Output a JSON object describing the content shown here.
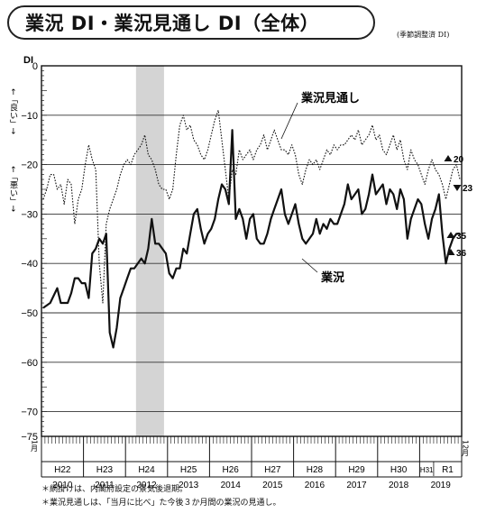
{
  "title": "業況 DI・業況見通し DI（全体）",
  "note_adjusted": "(季節調整済 DI)",
  "footnotes": [
    "＊網掛けは、内閣府設定の景気後退期。",
    "＊業況見通しは、「当月に比べ」た今後３か月間の業況の見通し。"
  ],
  "chart_data": {
    "type": "line",
    "ylabel": "DI",
    "y_up_label": "←「良い」→",
    "y_down_label": "←「悪い」→",
    "ylim": [
      -75,
      0
    ],
    "yticks": [
      0,
      -10,
      -20,
      -30,
      -40,
      -50,
      -60,
      -70,
      -75
    ],
    "ytick_labels": [
      "0",
      "−10",
      "−20",
      "−30",
      "−40",
      "−50",
      "−60",
      "−70",
      "−75"
    ],
    "grid": true,
    "x_start": "2010-01",
    "x_end": "2019-12",
    "x_start_label": "1月",
    "x_end_label": "12月",
    "era_labels": [
      "H22",
      "H23",
      "H24",
      "H25",
      "H26",
      "H27",
      "H28",
      "H29",
      "H30",
      "H31",
      "R1"
    ],
    "year_labels": [
      "2010",
      "2011",
      "2012",
      "2013",
      "2014",
      "2015",
      "2016",
      "2017",
      "2018",
      "2019"
    ],
    "recession_shading": {
      "start": "2012-04",
      "end": "2012-11"
    },
    "series": [
      {
        "name": "業況",
        "style": "solid",
        "color": "#111111",
        "points": [
          [
            "2010-01",
            -49
          ],
          [
            "2010-03",
            -48
          ],
          [
            "2010-05",
            -45
          ],
          [
            "2010-06",
            -48
          ],
          [
            "2010-08",
            -48
          ],
          [
            "2010-09",
            -46
          ],
          [
            "2010-10",
            -43
          ],
          [
            "2010-11",
            -43
          ],
          [
            "2010-12",
            -44
          ],
          [
            "2011-01",
            -44
          ],
          [
            "2011-02",
            -47
          ],
          [
            "2011-03",
            -38
          ],
          [
            "2011-04",
            -37
          ],
          [
            "2011-05",
            -35
          ],
          [
            "2011-06",
            -36
          ],
          [
            "2011-07",
            -34
          ],
          [
            "2011-08",
            -54
          ],
          [
            "2011-09",
            -57
          ],
          [
            "2011-10",
            -53
          ],
          [
            "2011-11",
            -47
          ],
          [
            "2011-12",
            -45
          ],
          [
            "2012-01",
            -43
          ],
          [
            "2012-02",
            -41
          ],
          [
            "2012-03",
            -41
          ],
          [
            "2012-04",
            -40
          ],
          [
            "2012-05",
            -39
          ],
          [
            "2012-06",
            -40
          ],
          [
            "2012-07",
            -37
          ],
          [
            "2012-08",
            -31
          ],
          [
            "2012-09",
            -36
          ],
          [
            "2012-10",
            -36
          ],
          [
            "2012-11",
            -37
          ],
          [
            "2012-12",
            -38
          ],
          [
            "2013-01",
            -42
          ],
          [
            "2013-02",
            -43
          ],
          [
            "2013-03",
            -41
          ],
          [
            "2013-04",
            -41
          ],
          [
            "2013-05",
            -37
          ],
          [
            "2013-06",
            -38
          ],
          [
            "2013-07",
            -34
          ],
          [
            "2013-08",
            -30
          ],
          [
            "2013-09",
            -29
          ],
          [
            "2013-10",
            -33
          ],
          [
            "2013-11",
            -36
          ],
          [
            "2013-12",
            -34
          ],
          [
            "2014-01",
            -33
          ],
          [
            "2014-02",
            -31
          ],
          [
            "2014-03",
            -27
          ],
          [
            "2014-04",
            -24
          ],
          [
            "2014-05",
            -25
          ],
          [
            "2014-06",
            -28
          ],
          [
            "2014-07",
            -13
          ],
          [
            "2014-08",
            -31
          ],
          [
            "2014-09",
            -29
          ],
          [
            "2014-10",
            -31
          ],
          [
            "2014-11",
            -35
          ],
          [
            "2014-12",
            -31
          ],
          [
            "2015-01",
            -30
          ],
          [
            "2015-02",
            -35
          ],
          [
            "2015-03",
            -36
          ],
          [
            "2015-04",
            -36
          ],
          [
            "2015-05",
            -34
          ],
          [
            "2015-06",
            -31
          ],
          [
            "2015-07",
            -29
          ],
          [
            "2015-08",
            -27
          ],
          [
            "2015-09",
            -25
          ],
          [
            "2015-10",
            -30
          ],
          [
            "2015-11",
            -32
          ],
          [
            "2015-12",
            -30
          ],
          [
            "2016-01",
            -28
          ],
          [
            "2016-02",
            -32
          ],
          [
            "2016-03",
            -35
          ],
          [
            "2016-04",
            -36
          ],
          [
            "2016-05",
            -35
          ],
          [
            "2016-06",
            -34
          ],
          [
            "2016-07",
            -31
          ],
          [
            "2016-08",
            -34
          ],
          [
            "2016-09",
            -32
          ],
          [
            "2016-10",
            -33
          ],
          [
            "2016-11",
            -31
          ],
          [
            "2016-12",
            -32
          ],
          [
            "2017-01",
            -32
          ],
          [
            "2017-02",
            -30
          ],
          [
            "2017-03",
            -28
          ],
          [
            "2017-04",
            -24
          ],
          [
            "2017-05",
            -27
          ],
          [
            "2017-06",
            -26
          ],
          [
            "2017-07",
            -25
          ],
          [
            "2017-08",
            -30
          ],
          [
            "2017-09",
            -29
          ],
          [
            "2017-10",
            -26
          ],
          [
            "2017-11",
            -22
          ],
          [
            "2017-12",
            -26
          ],
          [
            "2018-01",
            -25
          ],
          [
            "2018-02",
            -24
          ],
          [
            "2018-03",
            -28
          ],
          [
            "2018-04",
            -25
          ],
          [
            "2018-05",
            -26
          ],
          [
            "2018-06",
            -29
          ],
          [
            "2018-07",
            -25
          ],
          [
            "2018-08",
            -27
          ],
          [
            "2018-09",
            -35
          ],
          [
            "2018-10",
            -31
          ],
          [
            "2018-11",
            -29
          ],
          [
            "2018-12",
            -27
          ],
          [
            "2019-01",
            -28
          ],
          [
            "2019-02",
            -32
          ],
          [
            "2019-03",
            -35
          ],
          [
            "2019-04",
            -31
          ],
          [
            "2019-05",
            -29
          ],
          [
            "2019-06",
            -26
          ],
          [
            "2019-07",
            -34
          ],
          [
            "2019-08",
            -40
          ],
          [
            "2019-09",
            -37
          ],
          [
            "2019-10",
            -35
          ],
          [
            "2019-11",
            -34
          ],
          [
            "2019-12",
            -34
          ]
        ]
      },
      {
        "name": "業況見通し",
        "style": "dotted",
        "color": "#111111",
        "points": [
          [
            "2010-01",
            -27
          ],
          [
            "2010-02",
            -25
          ],
          [
            "2010-03",
            -22
          ],
          [
            "2010-04",
            -22
          ],
          [
            "2010-05",
            -25
          ],
          [
            "2010-06",
            -24
          ],
          [
            "2010-07",
            -28
          ],
          [
            "2010-08",
            -23
          ],
          [
            "2010-09",
            -24
          ],
          [
            "2010-10",
            -32
          ],
          [
            "2010-11",
            -27
          ],
          [
            "2010-12",
            -25
          ],
          [
            "2011-01",
            -20
          ],
          [
            "2011-02",
            -16
          ],
          [
            "2011-03",
            -19
          ],
          [
            "2011-04",
            -21
          ],
          [
            "2011-05",
            -40
          ],
          [
            "2011-06",
            -48
          ],
          [
            "2011-07",
            -32
          ],
          [
            "2011-08",
            -29
          ],
          [
            "2011-09",
            -27
          ],
          [
            "2011-10",
            -25
          ],
          [
            "2011-11",
            -22
          ],
          [
            "2011-12",
            -20
          ],
          [
            "2012-01",
            -19
          ],
          [
            "2012-02",
            -20
          ],
          [
            "2012-03",
            -18
          ],
          [
            "2012-04",
            -17
          ],
          [
            "2012-05",
            -16
          ],
          [
            "2012-06",
            -14
          ],
          [
            "2012-07",
            -18
          ],
          [
            "2012-08",
            -19
          ],
          [
            "2012-09",
            -21
          ],
          [
            "2012-10",
            -24
          ],
          [
            "2012-11",
            -25
          ],
          [
            "2012-12",
            -25
          ],
          [
            "2013-01",
            -27
          ],
          [
            "2013-02",
            -25
          ],
          [
            "2013-03",
            -18
          ],
          [
            "2013-04",
            -12
          ],
          [
            "2013-05",
            -10
          ],
          [
            "2013-06",
            -13
          ],
          [
            "2013-07",
            -12
          ],
          [
            "2013-08",
            -15
          ],
          [
            "2013-09",
            -16
          ],
          [
            "2013-10",
            -18
          ],
          [
            "2013-11",
            -19
          ],
          [
            "2013-12",
            -17
          ],
          [
            "2014-01",
            -14
          ],
          [
            "2014-02",
            -11
          ],
          [
            "2014-03",
            -9
          ],
          [
            "2014-04",
            -15
          ],
          [
            "2014-05",
            -21
          ],
          [
            "2014-06",
            -27
          ],
          [
            "2014-07",
            -21
          ],
          [
            "2014-08",
            -22
          ],
          [
            "2014-09",
            -17
          ],
          [
            "2014-10",
            -19
          ],
          [
            "2014-11",
            -18
          ],
          [
            "2014-12",
            -17
          ],
          [
            "2015-01",
            -19
          ],
          [
            "2015-02",
            -17
          ],
          [
            "2015-03",
            -16
          ],
          [
            "2015-04",
            -14
          ],
          [
            "2015-05",
            -17
          ],
          [
            "2015-06",
            -15
          ],
          [
            "2015-07",
            -13
          ],
          [
            "2015-08",
            -15
          ],
          [
            "2015-09",
            -17
          ],
          [
            "2015-10",
            -17
          ],
          [
            "2015-11",
            -18
          ],
          [
            "2015-12",
            -16
          ],
          [
            "2016-01",
            -18
          ],
          [
            "2016-02",
            -22
          ],
          [
            "2016-03",
            -24
          ],
          [
            "2016-04",
            -21
          ],
          [
            "2016-05",
            -19
          ],
          [
            "2016-06",
            -20
          ],
          [
            "2016-07",
            -19
          ],
          [
            "2016-08",
            -21
          ],
          [
            "2016-09",
            -19
          ],
          [
            "2016-10",
            -17
          ],
          [
            "2016-11",
            -18
          ],
          [
            "2016-12",
            -16
          ],
          [
            "2017-01",
            -17
          ],
          [
            "2017-02",
            -16
          ],
          [
            "2017-03",
            -16
          ],
          [
            "2017-04",
            -15
          ],
          [
            "2017-05",
            -14
          ],
          [
            "2017-06",
            -15
          ],
          [
            "2017-07",
            -13
          ],
          [
            "2017-08",
            -16
          ],
          [
            "2017-09",
            -15
          ],
          [
            "2017-10",
            -14
          ],
          [
            "2017-11",
            -12
          ],
          [
            "2017-12",
            -15
          ],
          [
            "2018-01",
            -14
          ],
          [
            "2018-02",
            -17
          ],
          [
            "2018-03",
            -18
          ],
          [
            "2018-04",
            -16
          ],
          [
            "2018-05",
            -14
          ],
          [
            "2018-06",
            -17
          ],
          [
            "2018-07",
            -15
          ],
          [
            "2018-08",
            -19
          ],
          [
            "2018-09",
            -21
          ],
          [
            "2018-10",
            -17
          ],
          [
            "2018-11",
            -19
          ],
          [
            "2018-12",
            -20
          ],
          [
            "2019-01",
            -22
          ],
          [
            "2019-02",
            -24
          ],
          [
            "2019-03",
            -21
          ],
          [
            "2019-04",
            -19
          ],
          [
            "2019-05",
            -21
          ],
          [
            "2019-06",
            -22
          ],
          [
            "2019-07",
            -24
          ],
          [
            "2019-08",
            -27
          ],
          [
            "2019-09",
            -24
          ],
          [
            "2019-10",
            -21
          ],
          [
            "2019-11",
            -20
          ],
          [
            "2019-12",
            -23
          ]
        ]
      }
    ],
    "series_labels": [
      "業況見通し",
      "業況"
    ],
    "annotations": [
      {
        "text": "20",
        "marker": "triangle-up",
        "y": -20
      },
      {
        "text": "23",
        "marker": "triangle-down",
        "y": -23
      },
      {
        "text": "35",
        "marker": "triangle-up",
        "y": -35
      },
      {
        "text": "36",
        "marker": "triangle-up",
        "y": -36
      }
    ]
  }
}
